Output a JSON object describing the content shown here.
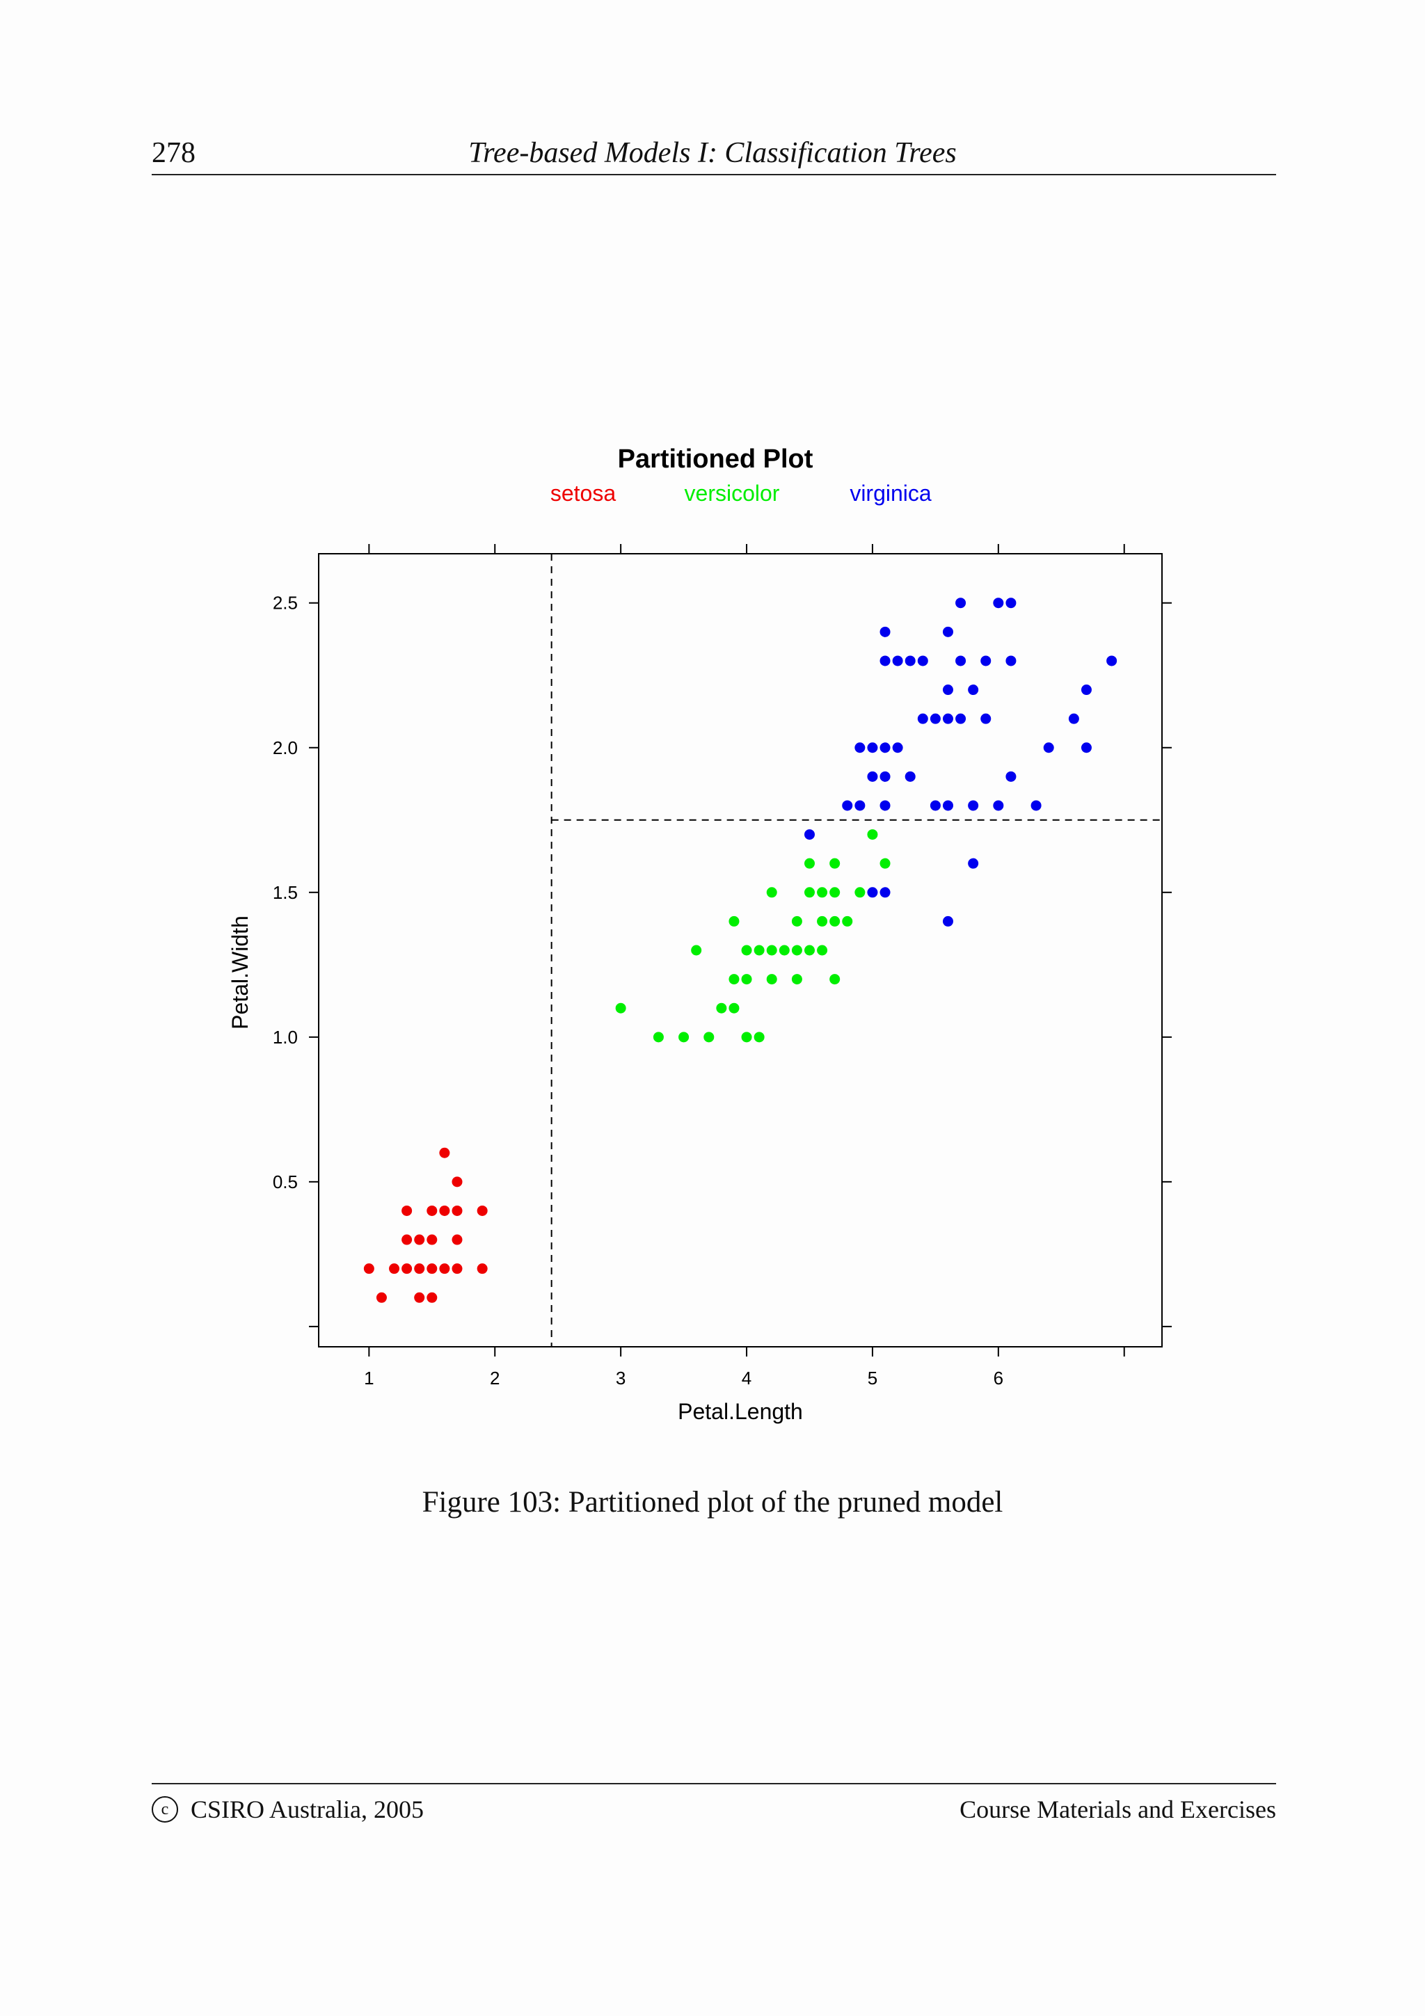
{
  "header": {
    "page_number": "278",
    "running_title": "Tree-based Models I: Classification Trees"
  },
  "figure": {
    "caption": "Figure 103: Partitioned plot of the pruned model"
  },
  "footer": {
    "copyright_symbol": "c",
    "left": "CSIRO Australia, 2005",
    "right": "Course Materials and Exercises"
  },
  "chart_data": {
    "type": "scatter",
    "title": "Partitioned Plot",
    "xlabel": "Petal.Length",
    "ylabel": "Petal.Width",
    "xlim": [
      0.6,
      7.3
    ],
    "ylim": [
      -0.07,
      2.67
    ],
    "x_ticks": [
      1,
      2,
      3,
      4,
      5,
      6
    ],
    "y_ticks": [
      0.5,
      1.0,
      1.5,
      2.0,
      2.5
    ],
    "y_tick_labels": [
      "0.5",
      "1.0",
      "1.5",
      "2.0",
      "2.5"
    ],
    "legend_position": "top",
    "partition_lines": [
      {
        "orientation": "vertical",
        "x": 2.45,
        "y_from": -0.07,
        "y_to": 2.67
      },
      {
        "orientation": "horizontal",
        "y": 1.75,
        "x_from": 2.45,
        "x_to": 7.3
      }
    ],
    "series": [
      {
        "name": "setosa",
        "color": "#ee0000",
        "points": [
          [
            1.0,
            0.2
          ],
          [
            1.1,
            0.1
          ],
          [
            1.2,
            0.2
          ],
          [
            1.3,
            0.2
          ],
          [
            1.3,
            0.3
          ],
          [
            1.3,
            0.4
          ],
          [
            1.4,
            0.1
          ],
          [
            1.4,
            0.2
          ],
          [
            1.4,
            0.3
          ],
          [
            1.5,
            0.1
          ],
          [
            1.5,
            0.2
          ],
          [
            1.5,
            0.3
          ],
          [
            1.5,
            0.4
          ],
          [
            1.6,
            0.2
          ],
          [
            1.6,
            0.4
          ],
          [
            1.6,
            0.6
          ],
          [
            1.7,
            0.2
          ],
          [
            1.7,
            0.3
          ],
          [
            1.7,
            0.4
          ],
          [
            1.7,
            0.5
          ],
          [
            1.9,
            0.2
          ],
          [
            1.9,
            0.4
          ]
        ]
      },
      {
        "name": "versicolor",
        "color": "#00ee00",
        "points": [
          [
            3.0,
            1.1
          ],
          [
            3.3,
            1.0
          ],
          [
            3.5,
            1.0
          ],
          [
            3.6,
            1.3
          ],
          [
            3.7,
            1.0
          ],
          [
            3.8,
            1.1
          ],
          [
            3.9,
            1.1
          ],
          [
            3.9,
            1.2
          ],
          [
            3.9,
            1.4
          ],
          [
            4.0,
            1.0
          ],
          [
            4.0,
            1.2
          ],
          [
            4.0,
            1.3
          ],
          [
            4.1,
            1.0
          ],
          [
            4.1,
            1.3
          ],
          [
            4.2,
            1.2
          ],
          [
            4.2,
            1.3
          ],
          [
            4.2,
            1.5
          ],
          [
            4.3,
            1.3
          ],
          [
            4.4,
            1.2
          ],
          [
            4.4,
            1.3
          ],
          [
            4.4,
            1.4
          ],
          [
            4.5,
            1.3
          ],
          [
            4.5,
            1.5
          ],
          [
            4.5,
            1.6
          ],
          [
            4.6,
            1.3
          ],
          [
            4.6,
            1.4
          ],
          [
            4.6,
            1.5
          ],
          [
            4.7,
            1.2
          ],
          [
            4.7,
            1.4
          ],
          [
            4.7,
            1.5
          ],
          [
            4.7,
            1.6
          ],
          [
            4.8,
            1.4
          ],
          [
            4.9,
            1.5
          ],
          [
            5.0,
            1.7
          ],
          [
            5.1,
            1.6
          ]
        ]
      },
      {
        "name": "virginica",
        "color": "#0000ee",
        "points": [
          [
            4.5,
            1.7
          ],
          [
            4.8,
            1.8
          ],
          [
            4.9,
            1.8
          ],
          [
            4.9,
            2.0
          ],
          [
            5.0,
            1.5
          ],
          [
            5.0,
            1.9
          ],
          [
            5.0,
            2.0
          ],
          [
            5.1,
            1.5
          ],
          [
            5.1,
            1.8
          ],
          [
            5.1,
            1.9
          ],
          [
            5.1,
            2.0
          ],
          [
            5.1,
            2.3
          ],
          [
            5.1,
            2.4
          ],
          [
            5.2,
            2.0
          ],
          [
            5.2,
            2.3
          ],
          [
            5.3,
            1.9
          ],
          [
            5.3,
            2.3
          ],
          [
            5.4,
            2.1
          ],
          [
            5.4,
            2.3
          ],
          [
            5.5,
            1.8
          ],
          [
            5.5,
            2.1
          ],
          [
            5.6,
            1.4
          ],
          [
            5.6,
            1.8
          ],
          [
            5.6,
            2.1
          ],
          [
            5.6,
            2.2
          ],
          [
            5.6,
            2.4
          ],
          [
            5.7,
            2.1
          ],
          [
            5.7,
            2.3
          ],
          [
            5.7,
            2.5
          ],
          [
            5.8,
            1.6
          ],
          [
            5.8,
            1.8
          ],
          [
            5.8,
            2.2
          ],
          [
            5.9,
            2.1
          ],
          [
            5.9,
            2.3
          ],
          [
            6.0,
            1.8
          ],
          [
            6.0,
            2.5
          ],
          [
            6.1,
            1.9
          ],
          [
            6.1,
            2.3
          ],
          [
            6.1,
            2.5
          ],
          [
            6.3,
            1.8
          ],
          [
            6.4,
            2.0
          ],
          [
            6.6,
            2.1
          ],
          [
            6.7,
            2.0
          ],
          [
            6.7,
            2.2
          ],
          [
            6.9,
            2.3
          ]
        ]
      }
    ]
  }
}
